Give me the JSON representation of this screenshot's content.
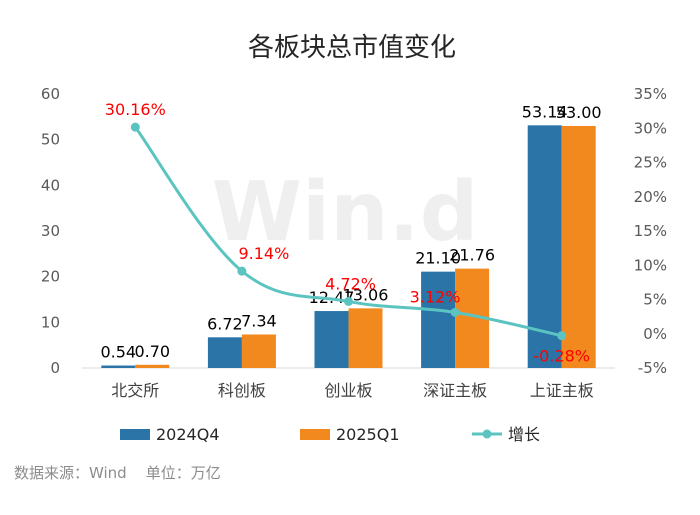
{
  "chart_data": {
    "type": "bar",
    "title": "各板块总市值变化",
    "categories": [
      "北交所",
      "科创板",
      "创业板",
      "深证主板",
      "上证主板"
    ],
    "series": [
      {
        "name": "2024Q4",
        "type": "bar",
        "axis": "left",
        "color": "#2a74a8",
        "values": [
          0.54,
          6.72,
          12.47,
          21.1,
          53.14
        ],
        "labels": [
          "0.54",
          "6.72",
          "12.47",
          "21.10",
          "53.14"
        ]
      },
      {
        "name": "2025Q1",
        "type": "bar",
        "axis": "left",
        "color": "#f2891f",
        "values": [
          0.7,
          7.34,
          13.06,
          21.76,
          53.0
        ],
        "labels": [
          "0.70",
          "7.34",
          "13.06",
          "21.76",
          "53.00"
        ]
      },
      {
        "name": "增长",
        "type": "line",
        "axis": "right",
        "color": "#5bc4c1",
        "values": [
          30.16,
          9.14,
          4.72,
          3.12,
          -0.28
        ],
        "labels": [
          "30.16%",
          "9.14%",
          "4.72%",
          "3.12%",
          "-0.28%"
        ]
      }
    ],
    "y_left": {
      "min": 0,
      "max": 60,
      "step": 10,
      "ticks": [
        "0",
        "10",
        "20",
        "30",
        "40",
        "50",
        "60"
      ]
    },
    "y_right": {
      "min": -5,
      "max": 35,
      "step": 5,
      "ticks": [
        "-5%",
        "0%",
        "5%",
        "10%",
        "15%",
        "20%",
        "25%",
        "30%",
        "35%"
      ]
    },
    "grid": false,
    "legend_position": "bottom",
    "growth_label_color": "#ff0000",
    "watermark": "Win.d"
  },
  "source_note": "数据来源：Wind    单位：万亿"
}
